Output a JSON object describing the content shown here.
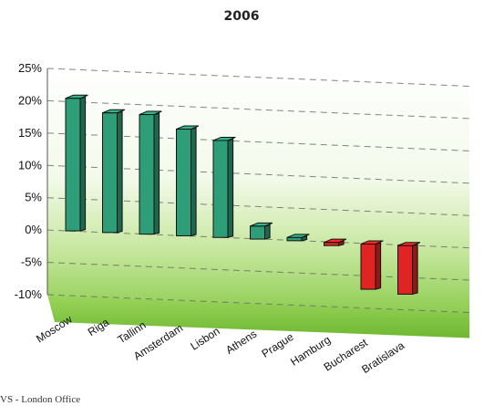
{
  "source_note": "VS - London Office",
  "chart_data": {
    "type": "bar",
    "title": "2006",
    "xlabel": "",
    "ylabel": "",
    "categories": [
      "Moscow",
      "Riga",
      "Tallinn",
      "Amsterdam",
      "Lisbon",
      "Athens",
      "Prague",
      "Hamburg",
      "Bucharest",
      "Bratislava"
    ],
    "values": [
      20.5,
      18.5,
      18.5,
      16.5,
      15.0,
      2.0,
      0.5,
      -0.5,
      -7.0,
      -7.5
    ],
    "yticks": [
      "25%",
      "20%",
      "15%",
      "10%",
      "5%",
      "0%",
      "-5%",
      "-10%"
    ],
    "ylim": [
      -10,
      25
    ],
    "grid": true,
    "three_d": true,
    "colors": {
      "positive": "#2e9e78",
      "negative": "#e02424",
      "floor": "#8ed04c",
      "grid": "#666666"
    }
  }
}
